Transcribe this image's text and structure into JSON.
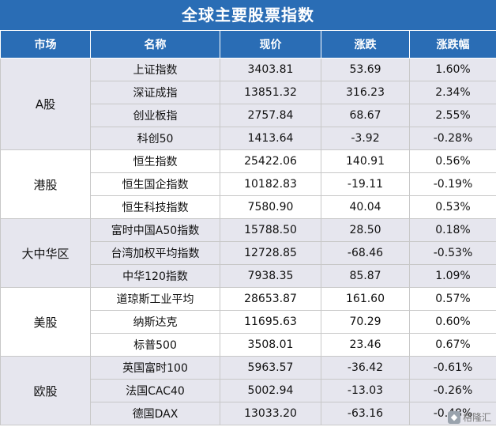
{
  "title": "全球主要股票指数",
  "headers": [
    "市场",
    "名称",
    "现价",
    "涨跌",
    "涨跌幅"
  ],
  "groups": [
    {
      "region": "A股",
      "rows": [
        {
          "name": "上证指数",
          "price": "3403.81",
          "change": "53.69",
          "pct": "1.60%"
        },
        {
          "name": "深证成指",
          "price": "13851.32",
          "change": "316.23",
          "pct": "2.34%"
        },
        {
          "name": "创业板指",
          "price": "2757.84",
          "change": "68.67",
          "pct": "2.55%"
        },
        {
          "name": "科创50",
          "price": "1413.64",
          "change": "-3.92",
          "pct": "-0.28%"
        }
      ]
    },
    {
      "region": "港股",
      "rows": [
        {
          "name": "恒生指数",
          "price": "25422.06",
          "change": "140.91",
          "pct": "0.56%"
        },
        {
          "name": "恒生国企指数",
          "price": "10182.83",
          "change": "-19.11",
          "pct": "-0.19%"
        },
        {
          "name": "恒生科技指数",
          "price": "7580.90",
          "change": "40.04",
          "pct": "0.53%"
        }
      ]
    },
    {
      "region": "大中华区",
      "rows": [
        {
          "name": "富时中国A50指数",
          "price": "15788.50",
          "change": "28.50",
          "pct": "0.18%"
        },
        {
          "name": "台湾加权平均指数",
          "price": "12728.85",
          "change": "-68.46",
          "pct": "-0.53%"
        },
        {
          "name": "中华120指数",
          "price": "7938.35",
          "change": "85.87",
          "pct": "1.09%"
        }
      ]
    },
    {
      "region": "美股",
      "rows": [
        {
          "name": "道琼斯工业平均",
          "price": "28653.87",
          "change": "161.60",
          "pct": "0.57%"
        },
        {
          "name": "纳斯达克",
          "price": "11695.63",
          "change": "70.29",
          "pct": "0.60%"
        },
        {
          "name": "标普500",
          "price": "3508.01",
          "change": "23.46",
          "pct": "0.67%"
        }
      ]
    },
    {
      "region": "欧股",
      "rows": [
        {
          "name": "英国富时100",
          "price": "5963.57",
          "change": "-36.42",
          "pct": "-0.61%"
        },
        {
          "name": "法国CAC40",
          "price": "5002.94",
          "change": "-13.03",
          "pct": "-0.26%"
        },
        {
          "name": "德国DAX",
          "price": "13033.20",
          "change": "-63.16",
          "pct": "-0.48%"
        }
      ]
    }
  ],
  "watermark": "格隆汇",
  "colors": {
    "header_bg": "#2a6db5",
    "shade_bg": "#e6e6ee",
    "border": "#c8c8c8"
  }
}
